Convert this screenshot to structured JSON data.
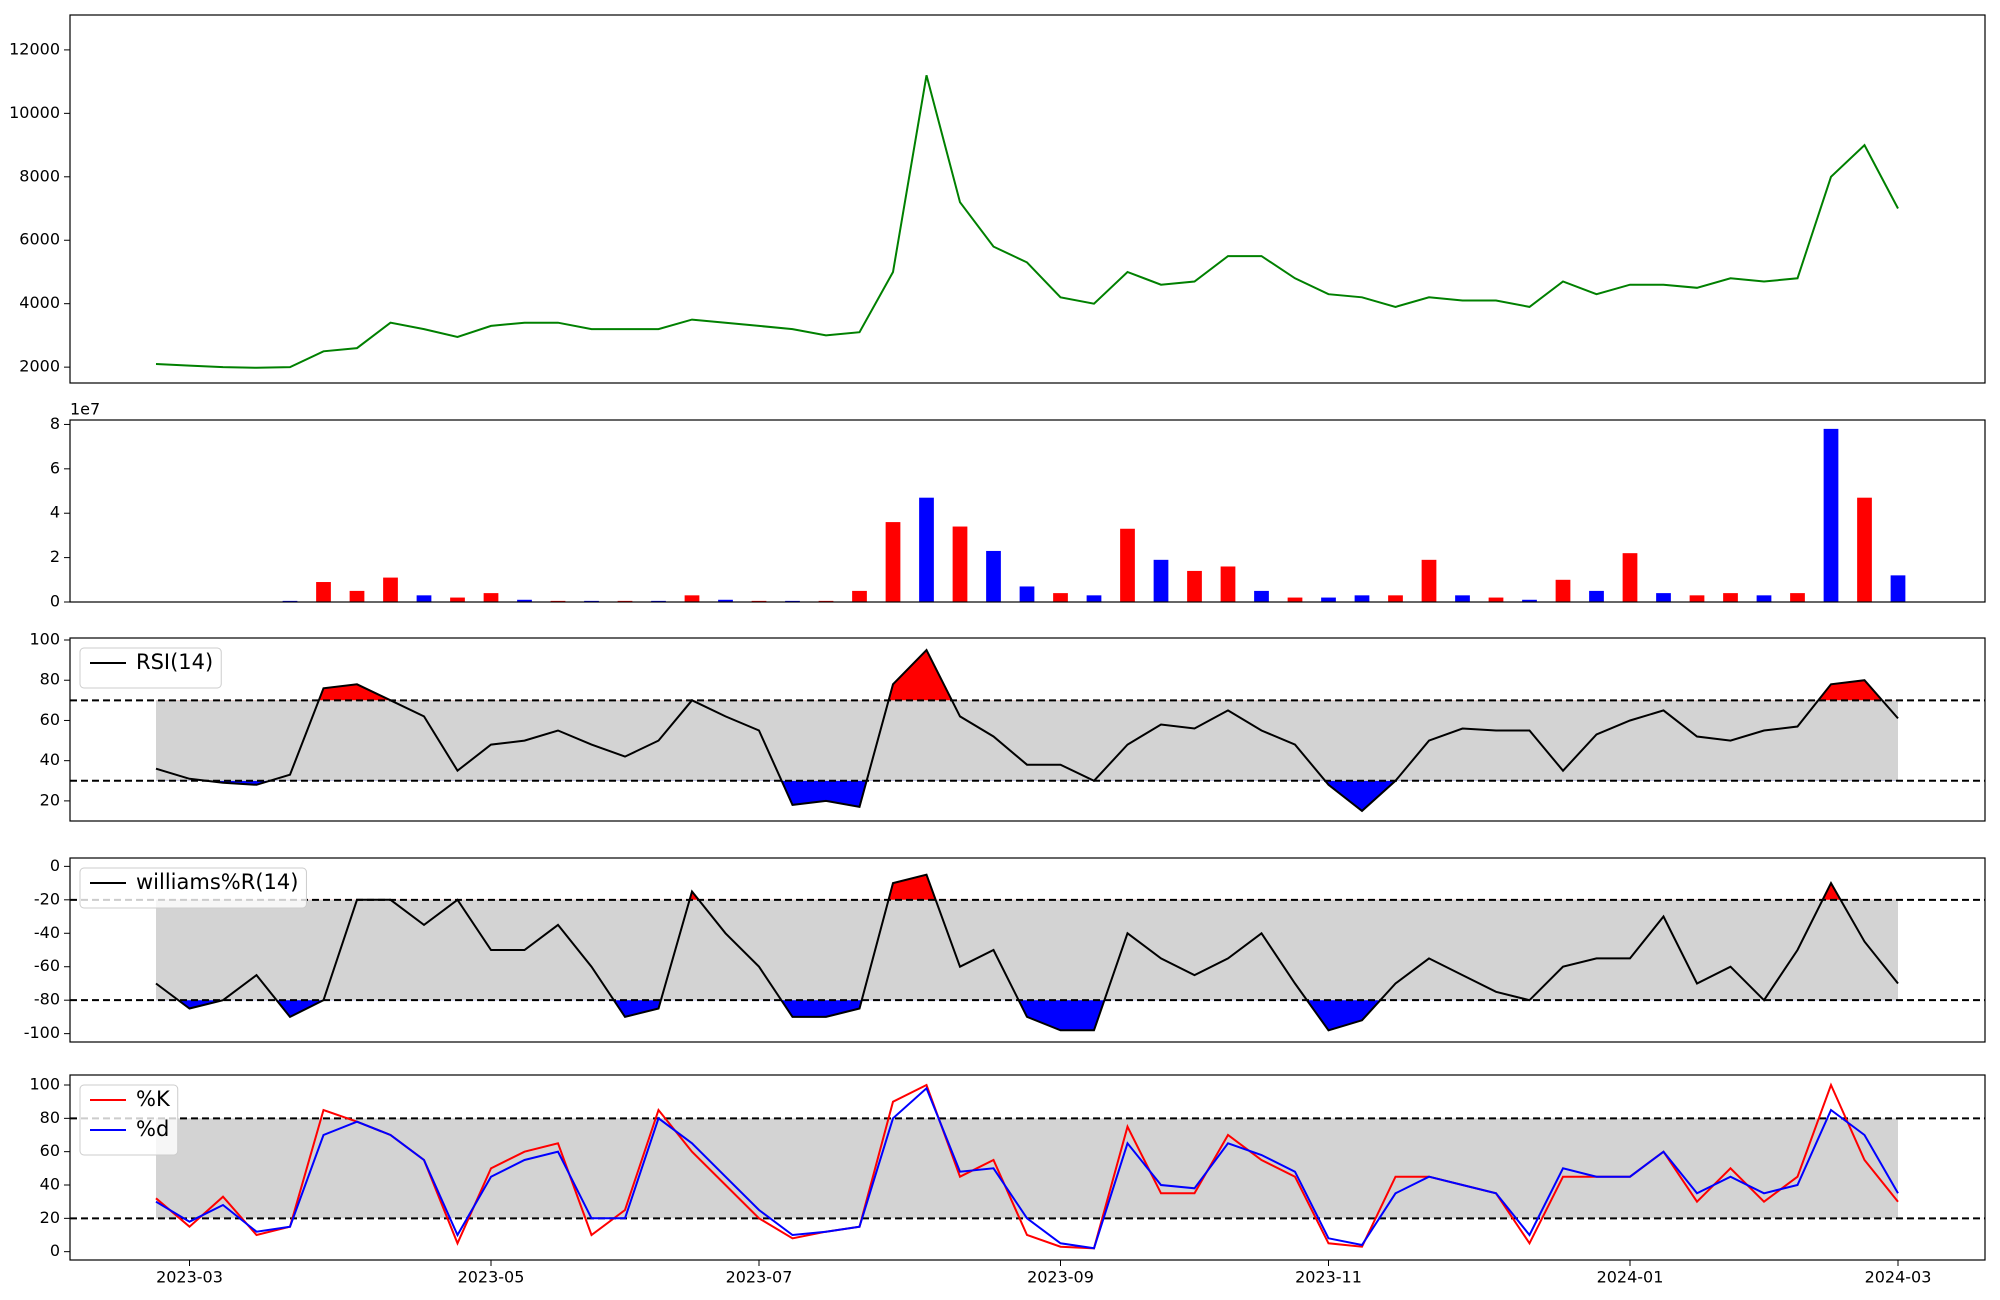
{
  "chart_data": [
    {
      "type": "line",
      "color": "green",
      "values": [
        2100,
        2050,
        2000,
        1980,
        2000,
        2500,
        2600,
        3400,
        3200,
        2950,
        3300,
        3400,
        3400,
        3200,
        3200,
        3200,
        3500,
        3400,
        3300,
        3200,
        3000,
        3100,
        5000,
        11200,
        7200,
        5800,
        5300,
        4200,
        4000,
        5000,
        4600,
        4700,
        5500,
        5500,
        4800,
        4300,
        4200,
        3900,
        4200,
        4100,
        4100,
        3900,
        4700,
        4300,
        4600,
        4600,
        4500,
        4800,
        4700,
        4800,
        8000,
        9000,
        7000
      ],
      "ylim": [
        1500,
        13100
      ],
      "yticks": [
        2000,
        4000,
        6000,
        8000,
        10000,
        12000
      ]
    },
    {
      "type": "bar",
      "y_offset_label": "1e7",
      "values": [
        0,
        0,
        0,
        0,
        0.05,
        0.9,
        0.5,
        1.1,
        0.3,
        0.2,
        0.4,
        0.1,
        0.05,
        0.05,
        0.05,
        0.05,
        0.3,
        0.1,
        0.05,
        0.05,
        0.05,
        0.5,
        3.6,
        4.7,
        3.4,
        2.3,
        0.7,
        0.4,
        0.3,
        3.3,
        1.9,
        1.4,
        1.6,
        0.5,
        0.2,
        0.2,
        0.3,
        0.3,
        1.9,
        0.3,
        0.2,
        0.1,
        1.0,
        0.5,
        2.2,
        0.4,
        0.3,
        0.4,
        0.3,
        0.4,
        7.8,
        4.7,
        1.2
      ],
      "colors": [
        "blue",
        "red",
        "blue",
        "red",
        "blue",
        "red",
        "red",
        "red",
        "blue",
        "red",
        "red",
        "blue",
        "red",
        "blue",
        "red",
        "blue",
        "red",
        "blue",
        "red",
        "blue",
        "red",
        "red",
        "red",
        "blue",
        "red",
        "blue",
        "blue",
        "red",
        "blue",
        "red",
        "blue",
        "red",
        "red",
        "blue",
        "red",
        "blue",
        "blue",
        "red",
        "red",
        "blue",
        "red",
        "blue",
        "red",
        "blue",
        "red",
        "blue",
        "red",
        "red",
        "blue",
        "red",
        "blue",
        "red",
        "blue"
      ],
      "ylim": [
        0,
        8.2
      ],
      "yticks": [
        0,
        2,
        4,
        6,
        8
      ]
    },
    {
      "type": "oscillator",
      "series": [
        {
          "name": "RSI(14)",
          "color": "black",
          "values": [
            36,
            31,
            29,
            28,
            33,
            76,
            78,
            70,
            62,
            35,
            48,
            50,
            55,
            48,
            42,
            50,
            70,
            62,
            55,
            18,
            20,
            17,
            78,
            95,
            62,
            52,
            38,
            38,
            30,
            48,
            58,
            56,
            65,
            55,
            48,
            28,
            15,
            30,
            50,
            56,
            55,
            55,
            35,
            53,
            60,
            65,
            52,
            50,
            55,
            57,
            78,
            80,
            61
          ]
        }
      ],
      "ylim": [
        10,
        101
      ],
      "yticks": [
        20,
        40,
        60,
        80,
        100
      ],
      "hlines": [
        70,
        30
      ],
      "band_color": "lightgray",
      "above_color": "red",
      "below_color": "blue"
    },
    {
      "type": "oscillator",
      "series": [
        {
          "name": "williams%R(14)",
          "color": "black",
          "values": [
            -70,
            -85,
            -80,
            -65,
            -90,
            -80,
            -20,
            -20,
            -35,
            -20,
            -50,
            -50,
            -35,
            -60,
            -90,
            -85,
            -15,
            -40,
            -60,
            -90,
            -90,
            -85,
            -10,
            -5,
            -60,
            -50,
            -90,
            -98,
            -98,
            -40,
            -55,
            -65,
            -55,
            -40,
            -70,
            -98,
            -92,
            -70,
            -55,
            -65,
            -75,
            -80,
            -60,
            -55,
            -55,
            -30,
            -70,
            -60,
            -80,
            -50,
            -10,
            -45,
            -70
          ]
        }
      ],
      "ylim": [
        -105,
        5
      ],
      "yticks": [
        -100,
        -80,
        -60,
        -40,
        -20,
        0
      ],
      "hlines": [
        -20,
        -80
      ],
      "band_color": "lightgray",
      "above_color": "red",
      "below_color": "blue"
    },
    {
      "type": "oscillator",
      "categories": [
        null,
        "2023-03",
        null,
        null,
        null,
        null,
        null,
        null,
        null,
        null,
        "2023-05",
        null,
        null,
        null,
        null,
        null,
        null,
        null,
        "2023-07",
        null,
        null,
        null,
        null,
        null,
        null,
        null,
        null,
        "2023-09",
        null,
        null,
        null,
        null,
        null,
        null,
        null,
        "2023-11",
        null,
        null,
        null,
        null,
        null,
        null,
        null,
        null,
        "2024-01",
        null,
        null,
        null,
        null,
        null,
        null,
        null,
        "2024-03"
      ],
      "series": [
        {
          "name": "%K",
          "color": "red",
          "values": [
            32,
            15,
            33,
            10,
            15,
            85,
            78,
            70,
            55,
            5,
            50,
            60,
            65,
            10,
            25,
            85,
            60,
            40,
            20,
            8,
            12,
            15,
            90,
            100,
            45,
            55,
            10,
            3,
            2,
            75,
            35,
            35,
            70,
            55,
            45,
            5,
            3,
            45,
            45,
            40,
            35,
            5,
            45,
            45,
            45,
            60,
            30,
            50,
            30,
            45,
            100,
            55,
            30
          ]
        },
        {
          "name": "%d",
          "color": "blue",
          "values": [
            30,
            18,
            28,
            12,
            15,
            70,
            78,
            70,
            55,
            10,
            45,
            55,
            60,
            20,
            20,
            80,
            65,
            45,
            25,
            10,
            12,
            15,
            80,
            98,
            48,
            50,
            20,
            5,
            2,
            65,
            40,
            38,
            65,
            58,
            48,
            8,
            4,
            35,
            45,
            40,
            35,
            10,
            50,
            45,
            45,
            60,
            35,
            45,
            35,
            40,
            85,
            70,
            35
          ]
        }
      ],
      "ylim": [
        -5,
        106
      ],
      "yticks": [
        0,
        20,
        40,
        60,
        80,
        100
      ],
      "hlines": [
        80,
        20
      ],
      "band_color": "lightgray"
    }
  ]
}
